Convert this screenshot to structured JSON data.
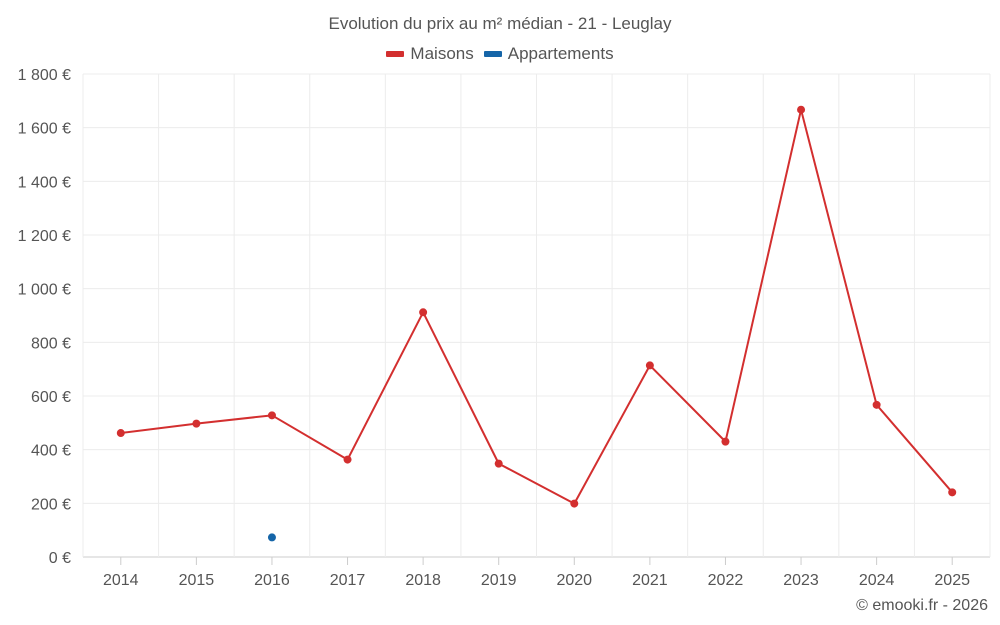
{
  "chart_data": {
    "type": "line",
    "title": "Evolution du prix au m² médian - 21 - Leuglay",
    "categories": [
      "2014",
      "2015",
      "2016",
      "2017",
      "2018",
      "2019",
      "2020",
      "2021",
      "2022",
      "2023",
      "2024",
      "2025"
    ],
    "ylim": [
      0,
      1800
    ],
    "yticks": [
      0,
      200,
      400,
      600,
      800,
      1000,
      1200,
      1400,
      1600,
      1800
    ],
    "ytick_labels": [
      "0 €",
      "200 €",
      "400 €",
      "600 €",
      "800 €",
      "1 000 €",
      "1 200 €",
      "1 400 €",
      "1 600 €",
      "1 800 €"
    ],
    "grid": true,
    "legend_position": "top-center",
    "series": [
      {
        "name": "Maisons",
        "color": "#d32f2f",
        "values": [
          462,
          497,
          528,
          363,
          912,
          348,
          199,
          714,
          430,
          1667,
          567,
          241
        ]
      },
      {
        "name": "Appartements",
        "color": "#1565a8",
        "values": [
          null,
          null,
          73,
          null,
          null,
          null,
          null,
          null,
          null,
          null,
          null,
          null
        ]
      }
    ]
  },
  "credit": "© emooki.fr - 2026"
}
